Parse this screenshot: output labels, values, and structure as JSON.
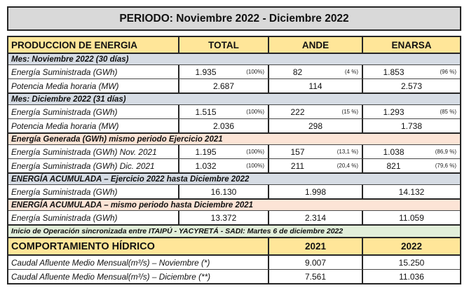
{
  "page": {
    "title": "PERIODO: Noviembre 2022 - Diciembre 2022"
  },
  "colors": {
    "title_bg": "#d9d9d9",
    "header_bg": "#ffe699",
    "section_blue_bg": "#d6dce4",
    "section_peach_bg": "#fce4d6",
    "note_green_bg": "#e2efda",
    "border": "#262626"
  },
  "energy": {
    "headers": {
      "label": "PRODUCCION DE ENERGIA",
      "total": "TOTAL",
      "ande": "ANDE",
      "enarsa": "ENARSA"
    },
    "rows": [
      {
        "type": "section-blue",
        "label": "Mes: Noviembre 2022 (30 días)"
      },
      {
        "type": "data",
        "label": "Energía Suministrada (GWh)",
        "values": [
          {
            "v": "1.935",
            "pct": "(100%)"
          },
          {
            "v": "82",
            "pct": "(4 %)"
          },
          {
            "v": "1.853",
            "pct": "(96 %)"
          }
        ]
      },
      {
        "type": "data",
        "label": "Potencia Media horaria (MW)",
        "values": [
          {
            "v": "2.687"
          },
          {
            "v": "114"
          },
          {
            "v": "2.573"
          }
        ]
      },
      {
        "type": "section-blue",
        "label": "Mes: Diciembre 2022 (31 días)"
      },
      {
        "type": "data",
        "label": "Energía Suministrada (GWh)",
        "values": [
          {
            "v": "1.515",
            "pct": "(100%)"
          },
          {
            "v": "222",
            "pct": "(15 %)"
          },
          {
            "v": "1.293",
            "pct": "(85 %)"
          }
        ]
      },
      {
        "type": "data",
        "label": "Potencia Media horaria (MW)",
        "values": [
          {
            "v": "2.036"
          },
          {
            "v": "298"
          },
          {
            "v": "1.738"
          }
        ]
      },
      {
        "type": "section-peach",
        "label": "Energía Generada (GWh) mismo periodo Ejercicio 2021"
      },
      {
        "type": "data",
        "label": "Energía Suministrada (GWh) Nov. 2021",
        "values": [
          {
            "v": "1.195",
            "pct": "(100%)"
          },
          {
            "v": "157",
            "pct": "(13,1 %)"
          },
          {
            "v": "1.038",
            "pct": "(86,9 %)"
          }
        ]
      },
      {
        "type": "data",
        "label": "Energía Suministrada (GWh) Dic. 2021",
        "values": [
          {
            "v": "1.032",
            "pct": "(100%)"
          },
          {
            "v": "211",
            "pct": "(20,4 %)"
          },
          {
            "v": "821",
            "pct": "(79,6 %)"
          }
        ]
      },
      {
        "type": "section-blue",
        "label": "ENERGÍA ACUMULADA – Ejercicio 2022 hasta Diciembre 2022"
      },
      {
        "type": "data",
        "label": "Energía Suministrada (GWh)",
        "values": [
          {
            "v": "16.130"
          },
          {
            "v": "1.998"
          },
          {
            "v": "14.132"
          }
        ]
      },
      {
        "type": "section-peach",
        "label": "ENERGÍA ACUMULADA – mismo periodo hasta Diciembre 2021"
      },
      {
        "type": "data",
        "label": "Energía Suministrada (GWh)",
        "values": [
          {
            "v": "13.372"
          },
          {
            "v": "2.314"
          },
          {
            "v": "11.059"
          }
        ]
      },
      {
        "type": "note-green",
        "label": "Inicio de Operación sincronizada entre ITAIPÚ - YACYRETÁ - SADI: Martes 6 de diciembre 2022"
      }
    ]
  },
  "hydric": {
    "header": {
      "label": "COMPORTAMIENTO HÍDRICO",
      "col1": "2021",
      "col2": "2022"
    },
    "rows": [
      {
        "label": "Caudal Afluente Medio Mensual(m³/s) – Noviembre (*)",
        "values": [
          "9.007",
          "15.250"
        ]
      },
      {
        "label": "Caudal Afluente Medio Mensual(m³/s) – Diciembre (**)",
        "values": [
          "7.561",
          "11.036"
        ]
      }
    ]
  },
  "chart_data": {
    "type": "table",
    "title": "PERIODO: Noviembre 2022 - Diciembre 2022",
    "columns": [
      "PRODUCCION DE ENERGIA",
      "TOTAL",
      "ANDE",
      "ENARSA"
    ],
    "rows": [
      [
        "Energía Suministrada (GWh) Nov 2022",
        "1.935 (100%)",
        "82 (4 %)",
        "1.853 (96 %)"
      ],
      [
        "Potencia Media horaria (MW) Nov 2022",
        "2.687",
        "114",
        "2.573"
      ],
      [
        "Energía Suministrada (GWh) Dic 2022",
        "1.515 (100%)",
        "222 (15 %)",
        "1.293 (85 %)"
      ],
      [
        "Potencia Media horaria (MW) Dic 2022",
        "2.036",
        "298",
        "1.738"
      ],
      [
        "Energía Suministrada (GWh) Nov. 2021",
        "1.195 (100%)",
        "157 (13,1 %)",
        "1.038 (86,9 %)"
      ],
      [
        "Energía Suministrada (GWh) Dic. 2021",
        "1.032 (100%)",
        "211 (20,4 %)",
        "821 (79,6 %)"
      ],
      [
        "Energía acumulada 2022 hasta Dic 2022 (GWh)",
        "16.130",
        "1.998",
        "14.132"
      ],
      [
        "Energía acumulada mismo periodo hasta Dic 2021 (GWh)",
        "13.372",
        "2.314",
        "11.059"
      ],
      [
        "Caudal Afluente Medio Mensual(m³/s) – Noviembre (*)",
        "",
        "9.007 (2021)",
        "15.250 (2022)"
      ],
      [
        "Caudal Afluente Medio Mensual(m³/s) – Diciembre (**)",
        "",
        "7.561 (2021)",
        "11.036 (2022)"
      ]
    ]
  }
}
